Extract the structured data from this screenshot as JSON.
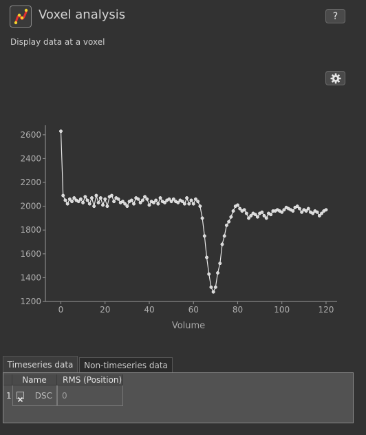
{
  "header": {
    "title": "Voxel analysis",
    "subtitle": "Display data at a voxel",
    "help_label": "?"
  },
  "tabs": [
    {
      "label": "Timeseries data",
      "active": true
    },
    {
      "label": "Non-timeseries data",
      "active": false
    }
  ],
  "table": {
    "columns": [
      "Name",
      "RMS (Position)"
    ],
    "rows": [
      {
        "index": "1",
        "checked": true,
        "name": "DSC",
        "rms": "0"
      }
    ]
  },
  "colors": {
    "background": "#323232",
    "line": "#e8e8e8",
    "axis": "#9a9a9a"
  },
  "chart_data": {
    "type": "line",
    "title": "",
    "xlabel": "Volume",
    "ylabel": "",
    "xlim": [
      -7,
      125
    ],
    "ylim": [
      1200,
      2680
    ],
    "xticks": [
      0,
      20,
      40,
      60,
      80,
      100,
      120
    ],
    "yticks": [
      1200,
      1400,
      1600,
      1800,
      2000,
      2200,
      2400,
      2600
    ],
    "grid": false,
    "series": [
      {
        "markers": true,
        "x": [
          0,
          1,
          2,
          3,
          4,
          5,
          6,
          7,
          8,
          9,
          10,
          11,
          12,
          13,
          14,
          15,
          16,
          17,
          18,
          19,
          20,
          21,
          22,
          23,
          24,
          25,
          26,
          27,
          28,
          29,
          30,
          31,
          32,
          33,
          34,
          35,
          36,
          37,
          38,
          39,
          40,
          41,
          42,
          43,
          44,
          45,
          46,
          47,
          48,
          49,
          50,
          51,
          52,
          53,
          54,
          55,
          56,
          57,
          58,
          59,
          60,
          61,
          62,
          63,
          64,
          65,
          66,
          67,
          68,
          69,
          70,
          71,
          72,
          73,
          74,
          75,
          76,
          77,
          78,
          79,
          80,
          81,
          82,
          83,
          84,
          85,
          86,
          87,
          88,
          89,
          90,
          91,
          92,
          93,
          94,
          95,
          96,
          97,
          98,
          99,
          100,
          101,
          102,
          103,
          104,
          105,
          106,
          107,
          108,
          109,
          110,
          111,
          112,
          113,
          114,
          115,
          116,
          117,
          118,
          119,
          120
        ],
        "y": [
          2630,
          2090,
          2050,
          2020,
          2060,
          2040,
          2070,
          2050,
          2040,
          2060,
          2030,
          2080,
          2050,
          2020,
          2070,
          2000,
          2090,
          2030,
          2070,
          2010,
          2060,
          2000,
          2080,
          2090,
          2040,
          2070,
          2060,
          2030,
          2040,
          2020,
          2000,
          2040,
          2050,
          2020,
          2070,
          2060,
          2030,
          2050,
          2080,
          2060,
          2010,
          2040,
          2030,
          2050,
          2020,
          2070,
          2040,
          2030,
          2050,
          2060,
          2040,
          2060,
          2040,
          2030,
          2050,
          2040,
          2020,
          2070,
          2020,
          2050,
          2020,
          2060,
          2040,
          2000,
          1900,
          1750,
          1570,
          1430,
          1320,
          1280,
          1320,
          1440,
          1520,
          1680,
          1750,
          1840,
          1870,
          1910,
          1960,
          2000,
          2010,
          1980,
          1960,
          1970,
          1940,
          1900,
          1920,
          1940,
          1930,
          1910,
          1940,
          1950,
          1920,
          1900,
          1940,
          1930,
          1960,
          1960,
          1970,
          1960,
          1950,
          1970,
          1990,
          1980,
          1970,
          1960,
          1990,
          2000,
          1980,
          1950,
          1970,
          1960,
          1980,
          1950,
          1940,
          1960,
          1950,
          1920,
          1940,
          1960,
          1970
        ]
      }
    ]
  }
}
